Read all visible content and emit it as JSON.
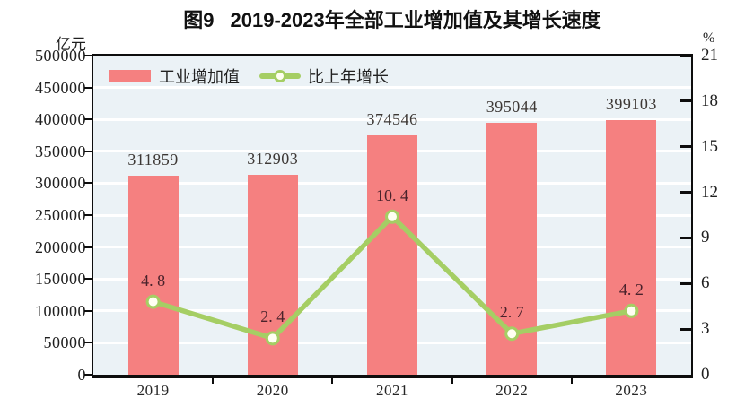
{
  "title": {
    "figure_label": "图9",
    "text": "2019-2023年全部工业增加值及其增长速度"
  },
  "chart_data": {
    "type": "bar+line",
    "categories": [
      "2019",
      "2020",
      "2021",
      "2022",
      "2023"
    ],
    "series": [
      {
        "name": "工业增加值",
        "type": "bar",
        "axis": "left",
        "unit": "亿元",
        "color": "#F58080",
        "values": [
          311859,
          312903,
          374546,
          395044,
          399103
        ],
        "value_labels": [
          "311859",
          "312903",
          "374546",
          "395044",
          "399103"
        ]
      },
      {
        "name": "比上年增长",
        "type": "line",
        "axis": "right",
        "unit": "%",
        "color": "#A5CE64",
        "marker_fill": "#FFFFF2",
        "values": [
          4.8,
          2.4,
          10.4,
          2.7,
          4.2
        ],
        "value_labels": [
          "4. 8",
          "2. 4",
          "10. 4",
          "2. 7",
          "4. 2"
        ]
      }
    ],
    "left_axis": {
      "title": "亿元",
      "min": 0,
      "max": 500000,
      "step": 50000,
      "tick_labels": [
        "500000",
        "450000",
        "400000",
        "350000",
        "300000",
        "250000",
        "200000",
        "150000",
        "100000",
        "50000",
        "0"
      ]
    },
    "right_axis": {
      "title": "%",
      "min": 0,
      "max": 21,
      "step": 3,
      "tick_labels": [
        "21",
        "18",
        "15",
        "12",
        "9",
        "6",
        "3",
        "0"
      ]
    },
    "grid": "white horizontal gridlines at every left-axis step",
    "legend_position": "top-left inside plot"
  },
  "colors": {
    "bar": "#F58080",
    "line": "#A5CE64",
    "marker_fill": "#FFFFF2",
    "plot_background": "#EBF2F6",
    "gridline": "#FFFFFF",
    "axis_frame": "#0D0D0D",
    "bar_label_text": "#3D3835",
    "line_label_text": "#4A222B"
  }
}
